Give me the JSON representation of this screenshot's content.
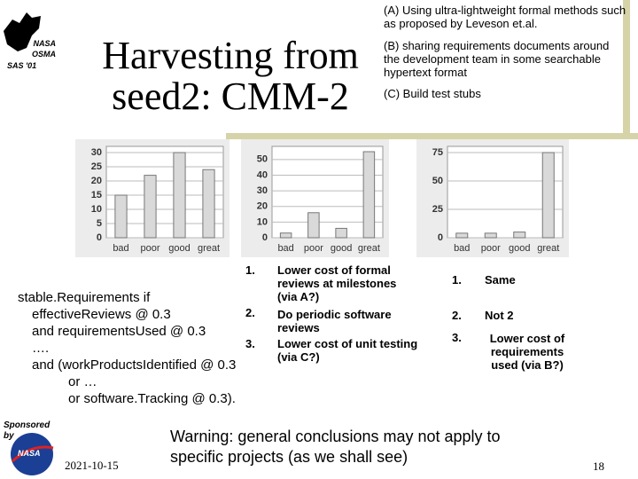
{
  "logo": {
    "lines": [
      "NASA",
      "OSMA",
      "SAS '01"
    ]
  },
  "title": "Harvesting from seed2: CMM-2",
  "notes": [
    "(A) Using ultra-lightweight formal methods such as proposed by Leveson et.al.",
    "(B) sharing  requirements documents around the development team in some searchable hypertext format",
    "(C) Build test stubs"
  ],
  "chart_data": [
    {
      "type": "bar",
      "categories": [
        "bad",
        "poor",
        "good",
        "great"
      ],
      "values": [
        15,
        22,
        30,
        24
      ],
      "color": "#d9d9d9",
      "ylim": [
        0,
        30
      ],
      "yticks": [
        0,
        5,
        10,
        15,
        20,
        25,
        30
      ],
      "grid": true
    },
    {
      "type": "bar",
      "categories": [
        "bad",
        "poor",
        "good",
        "great"
      ],
      "values": [
        3,
        16,
        6,
        55
      ],
      "color": "#d9d9d9",
      "ylim": [
        0,
        55
      ],
      "yticks": [
        0,
        10,
        20,
        30,
        40,
        50
      ],
      "grid": true
    },
    {
      "type": "bar",
      "categories": [
        "bad",
        "poor",
        "good",
        "great"
      ],
      "values": [
        4,
        4,
        5,
        75
      ],
      "color": "#d9d9d9",
      "ylim": [
        0,
        75
      ],
      "yticks": [
        0,
        25,
        50,
        75
      ],
      "grid": true
    }
  ],
  "condition": [
    "stable.Requirements   if",
    "effectiveReviews @ 0.3",
    "and  requirementsUsed @ 0.3",
    "….",
    "and (workProductsIdentified @ 0.3",
    "or …",
    "or  software.Tracking @ 0.3)."
  ],
  "findings": {
    "numbers": [
      "1.",
      "2.",
      "3."
    ],
    "items": [
      "Lower cost of formal reviews at milestones (via A?)",
      "Do periodic software reviews",
      "Lower cost of unit  testing (via C?)"
    ]
  },
  "outcomes": {
    "numbers": [
      "1.",
      "2.",
      "3."
    ],
    "items": [
      "Same",
      "Not 2",
      "Lower cost of requirements used (via B?)"
    ]
  },
  "sponsor": "Sponsored by",
  "sponsor_logo": "NASA",
  "date": "2021-10-15",
  "warning": "Warning: general conclusions may not apply to specific projects (as we shall see)",
  "page": "18"
}
